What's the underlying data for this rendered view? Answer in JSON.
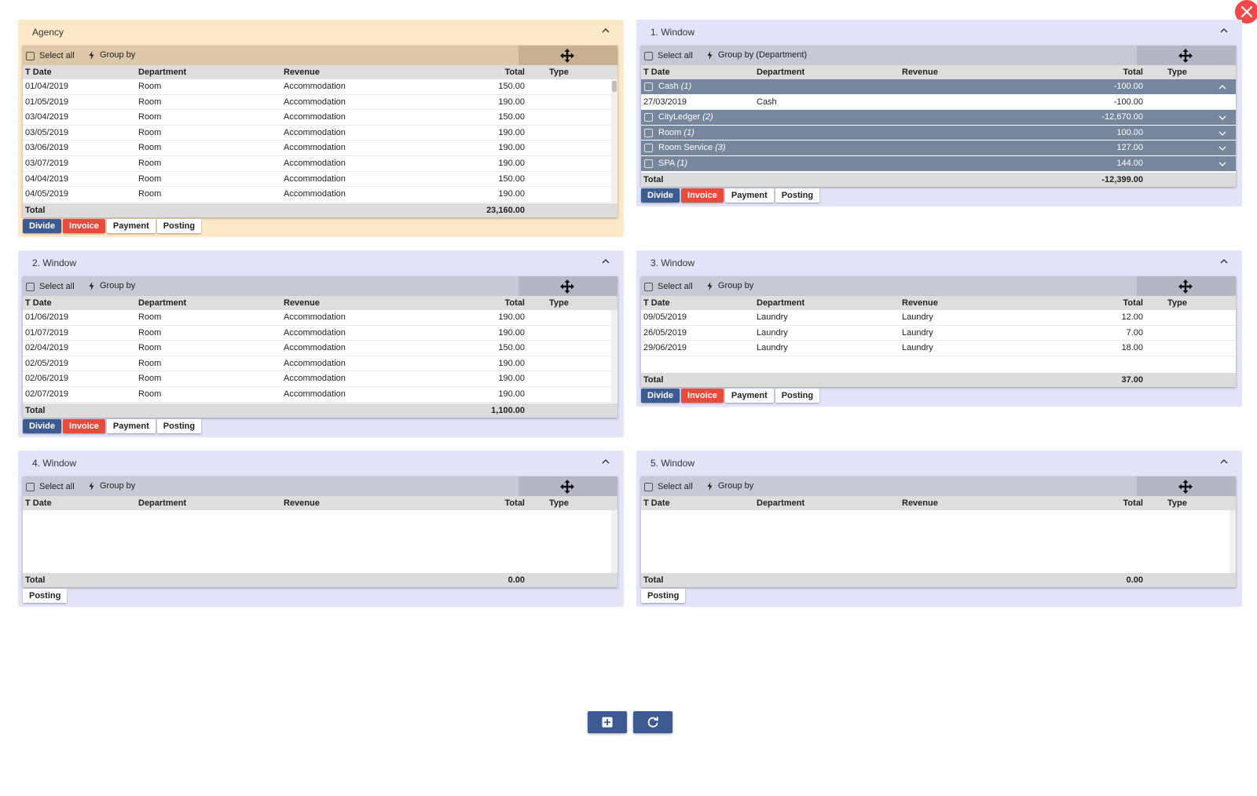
{
  "columns": {
    "date": "T Date",
    "department": "Department",
    "revenue": "Revenue",
    "total": "Total",
    "type": "Type"
  },
  "labels": {
    "select_all": "Select all",
    "group_by": "Group by",
    "group_by_department": "Group by (Department)",
    "total": "Total"
  },
  "buttons": {
    "divide": "Divide",
    "invoice": "Invoice",
    "payment": "Payment",
    "posting": "Posting"
  },
  "agency": {
    "title": "Agency",
    "rows": [
      {
        "date": "01/04/2019",
        "dept": "Room",
        "rev": "Accommodation",
        "total": "150.00"
      },
      {
        "date": "01/05/2019",
        "dept": "Room",
        "rev": "Accommodation",
        "total": "190.00"
      },
      {
        "date": "03/04/2019",
        "dept": "Room",
        "rev": "Accommodation",
        "total": "150.00"
      },
      {
        "date": "03/05/2019",
        "dept": "Room",
        "rev": "Accommodation",
        "total": "190.00"
      },
      {
        "date": "03/06/2019",
        "dept": "Room",
        "rev": "Accommodation",
        "total": "190.00"
      },
      {
        "date": "03/07/2019",
        "dept": "Room",
        "rev": "Accommodation",
        "total": "190.00"
      },
      {
        "date": "04/04/2019",
        "dept": "Room",
        "rev": "Accommodation",
        "total": "150.00"
      },
      {
        "date": "04/05/2019",
        "dept": "Room",
        "rev": "Accommodation",
        "total": "190.00"
      }
    ],
    "total": "23,160.00"
  },
  "window1": {
    "title": "1. Window",
    "groups": [
      {
        "name": "Cash",
        "count": "(1)",
        "total": "-100.00"
      },
      {
        "name": "CityLedger",
        "count": "(2)",
        "total": "-12,670.00"
      },
      {
        "name": "Room",
        "count": "(1)",
        "total": "100.00"
      },
      {
        "name": "Room Service",
        "count": "(3)",
        "total": "127.00"
      },
      {
        "name": "SPA",
        "count": "(1)",
        "total": "144.00"
      }
    ],
    "cash_row": {
      "date": "27/03/2019",
      "dept": "Cash",
      "total": "-100.00"
    },
    "total": "-12,399.00"
  },
  "window2": {
    "title": "2. Window",
    "rows": [
      {
        "date": "01/06/2019",
        "dept": "Room",
        "rev": "Accommodation",
        "total": "190.00"
      },
      {
        "date": "01/07/2019",
        "dept": "Room",
        "rev": "Accommodation",
        "total": "190.00"
      },
      {
        "date": "02/04/2019",
        "dept": "Room",
        "rev": "Accommodation",
        "total": "150.00"
      },
      {
        "date": "02/05/2019",
        "dept": "Room",
        "rev": "Accommodation",
        "total": "190.00"
      },
      {
        "date": "02/06/2019",
        "dept": "Room",
        "rev": "Accommodation",
        "total": "190.00"
      },
      {
        "date": "02/07/2019",
        "dept": "Room",
        "rev": "Accommodation",
        "total": "190.00"
      }
    ],
    "total": "1,100.00"
  },
  "window3": {
    "title": "3. Window",
    "rows": [
      {
        "date": "09/05/2019",
        "dept": "Laundry",
        "rev": "Laundry",
        "total": "12.00"
      },
      {
        "date": "26/05/2019",
        "dept": "Laundry",
        "rev": "Laundry",
        "total": "7.00"
      },
      {
        "date": "29/06/2019",
        "dept": "Laundry",
        "rev": "Laundry",
        "total": "18.00"
      }
    ],
    "total": "37.00"
  },
  "window4": {
    "title": "4. Window",
    "total": "0.00"
  },
  "window5": {
    "title": "5. Window",
    "total": "0.00"
  },
  "icons": {
    "close": "close-icon",
    "collapse": "chevron-up-icon",
    "move": "move-icon",
    "bolt": "lightning-icon",
    "add": "add-box-icon",
    "refresh": "refresh-icon"
  },
  "colors": {
    "agency_bg": "#fde8c8",
    "window_bg": "#e3e4f9",
    "group_row": "#76869d",
    "divide": "#3c5b93",
    "invoice": "#e84b3c",
    "close": "#ee4a4a"
  }
}
